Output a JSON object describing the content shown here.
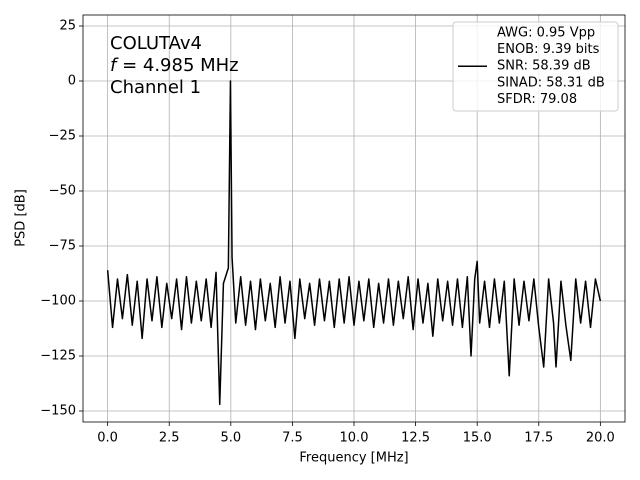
{
  "chart_data": {
    "type": "line",
    "annotation": {
      "line1": "COLUTAv4",
      "symbol": "f",
      "line2": " = 4.985 MHz",
      "line3": "Channel 1"
    },
    "xlabel": "Frequency [MHz]",
    "ylabel": "PSD [dB]",
    "xlim": [
      -1,
      21
    ],
    "ylim": [
      -155,
      30
    ],
    "xticks": [
      {
        "value": 0,
        "label": "0.0"
      },
      {
        "value": 2.5,
        "label": "2.5"
      },
      {
        "value": 5,
        "label": "5.0"
      },
      {
        "value": 7.5,
        "label": "7.5"
      },
      {
        "value": 10,
        "label": "10.0"
      },
      {
        "value": 12.5,
        "label": "12.5"
      },
      {
        "value": 15,
        "label": "15.0"
      },
      {
        "value": 17.5,
        "label": "17.5"
      },
      {
        "value": 20,
        "label": "20.0"
      }
    ],
    "yticks": [
      {
        "value": -150,
        "label": "−150"
      },
      {
        "value": -125,
        "label": "−125"
      },
      {
        "value": -100,
        "label": "−100"
      },
      {
        "value": -75,
        "label": "−75"
      },
      {
        "value": -50,
        "label": "−50"
      },
      {
        "value": -25,
        "label": "−25"
      },
      0,
      25
    ],
    "grid": true,
    "legend": "upper right",
    "x": [
      0,
      0.2,
      0.4,
      0.6,
      0.8,
      1.0,
      1.2,
      1.4,
      1.6,
      1.8,
      2.0,
      2.2,
      2.4,
      2.6,
      2.8,
      3.0,
      3.2,
      3.4,
      3.6,
      3.8,
      4.0,
      4.2,
      4.4,
      4.55,
      4.7,
      4.9,
      4.985,
      5.05,
      5.2,
      5.4,
      5.6,
      5.8,
      6.0,
      6.2,
      6.4,
      6.6,
      6.8,
      7.0,
      7.2,
      7.4,
      7.6,
      7.8,
      8.0,
      8.2,
      8.4,
      8.6,
      8.8,
      9.0,
      9.2,
      9.4,
      9.6,
      9.8,
      10.0,
      10.2,
      10.4,
      10.6,
      10.8,
      11.0,
      11.2,
      11.4,
      11.6,
      11.8,
      12.0,
      12.2,
      12.4,
      12.6,
      12.8,
      13.0,
      13.2,
      13.4,
      13.6,
      13.8,
      14.0,
      14.2,
      14.4,
      14.6,
      14.75,
      14.9,
      15.0,
      15.1,
      15.3,
      15.5,
      15.7,
      15.9,
      16.1,
      16.3,
      16.5,
      16.7,
      16.9,
      17.1,
      17.3,
      17.5,
      17.7,
      17.9,
      18.1,
      18.2,
      18.4,
      18.6,
      18.8,
      19.0,
      19.2,
      19.4,
      19.6,
      19.8,
      20.0
    ],
    "series": [
      {
        "name": [
          "AWG: 0.95 Vpp",
          "ENOB: 9.39 bits",
          "SNR: 58.39 dB",
          "SINAD: 58.31 dB",
          "SFDR: 79.08"
        ],
        "color": "#000000",
        "values": [
          -86,
          -112,
          -90,
          -108,
          -88,
          -111,
          -91,
          -117,
          -90,
          -109,
          -89,
          -112,
          -92,
          -108,
          -90,
          -113,
          -89,
          -110,
          -91,
          -109,
          -90,
          -112,
          -87,
          -147,
          -92,
          -85,
          0,
          -80,
          -110,
          -89,
          -111,
          -91,
          -113,
          -90,
          -109,
          -92,
          -112,
          -89,
          -110,
          -91,
          -117,
          -90,
          -108,
          -92,
          -111,
          -90,
          -109,
          -91,
          -112,
          -90,
          -110,
          -89,
          -111,
          -91,
          -109,
          -90,
          -112,
          -92,
          -110,
          -90,
          -111,
          -91,
          -108,
          -89,
          -113,
          -90,
          -110,
          -92,
          -116,
          -90,
          -109,
          -91,
          -111,
          -90,
          -112,
          -89,
          -125,
          -90,
          -82,
          -110,
          -91,
          -112,
          -90,
          -110,
          -91,
          -134,
          -90,
          -111,
          -91,
          -109,
          -90,
          -112,
          -130,
          -90,
          -110,
          -130,
          -91,
          -111,
          -127,
          -90,
          -110,
          -91,
          -112,
          -90,
          -100
        ]
      }
    ]
  }
}
